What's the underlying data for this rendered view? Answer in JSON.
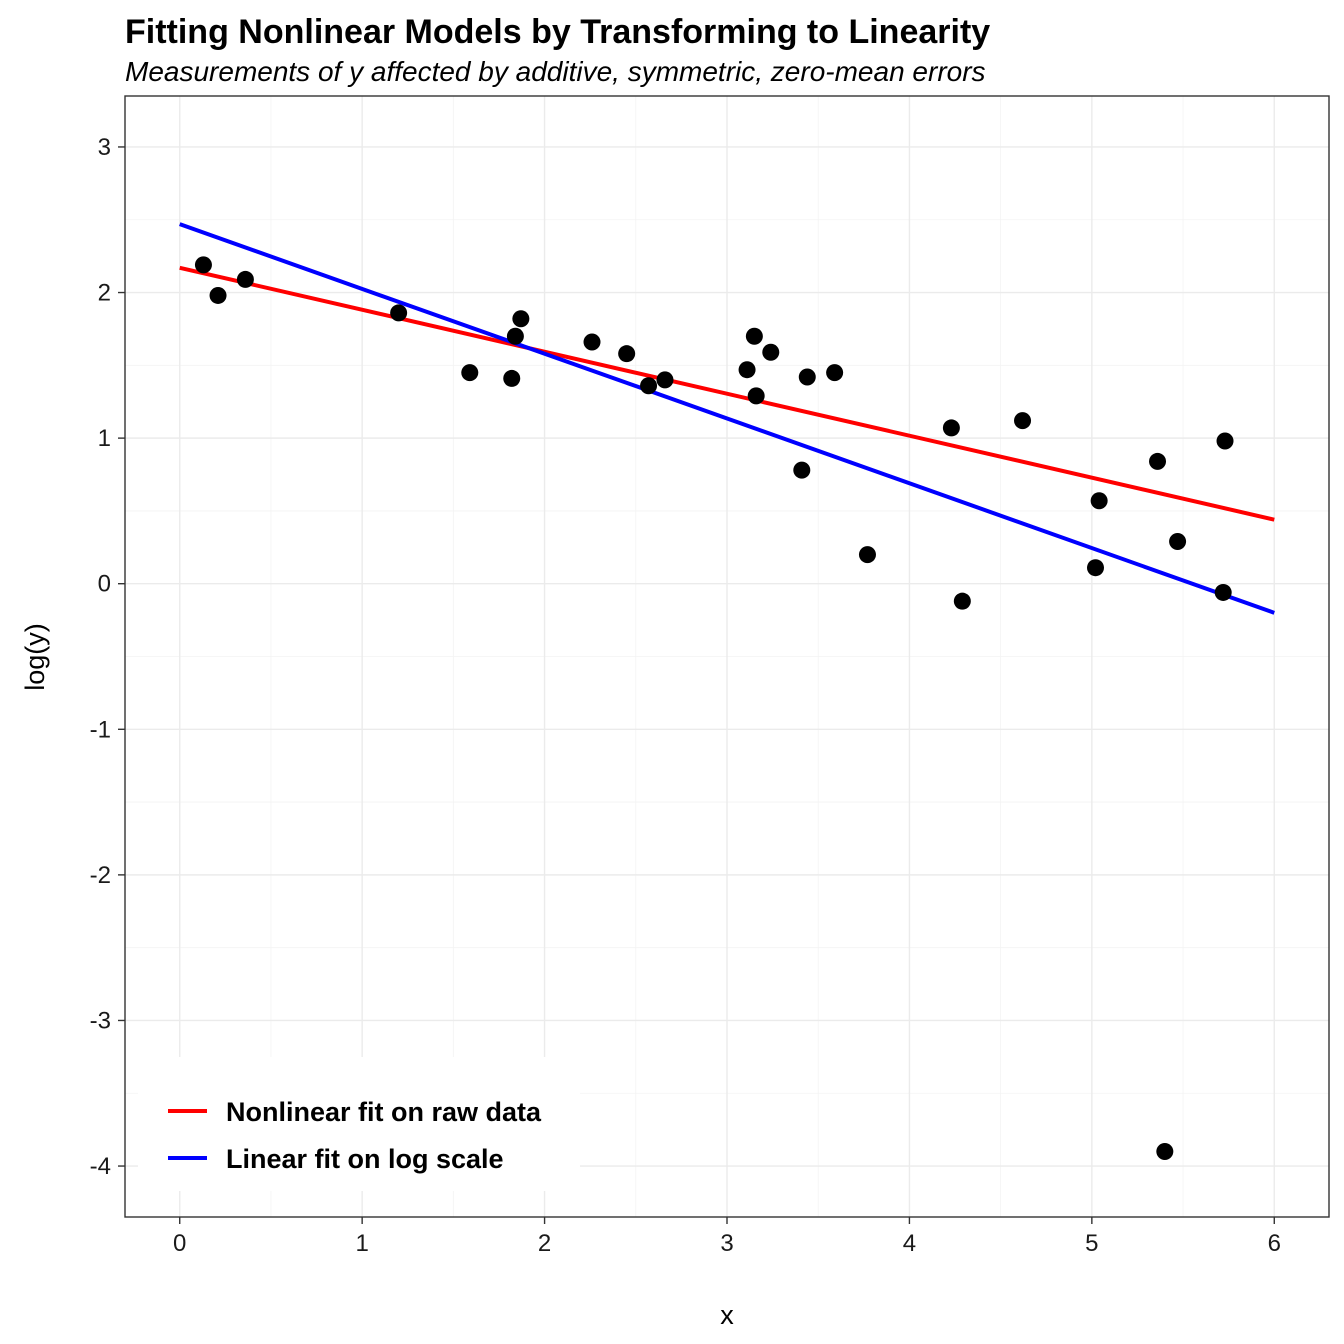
{
  "chart_data": {
    "type": "scatter",
    "title": "Fitting Nonlinear Models by Transforming to Linearity",
    "subtitle": "Measurements of y affected by additive, symmetric, zero-mean errors",
    "xlabel": "x",
    "ylabel": "log(y)",
    "xlim": [
      -0.3,
      6.3
    ],
    "ylim": [
      -4.35,
      3.35
    ],
    "x_ticks": [
      0,
      1,
      2,
      3,
      4,
      5,
      6
    ],
    "y_ticks": [
      -4,
      -3,
      -2,
      -1,
      0,
      1,
      2,
      3
    ],
    "grid": true,
    "legend_position": "bottom-left",
    "points": {
      "color": "#000000",
      "x": [
        0.13,
        0.21,
        0.36,
        1.2,
        1.59,
        1.82,
        1.84,
        1.87,
        2.26,
        2.45,
        2.57,
        2.66,
        3.11,
        3.15,
        3.16,
        3.24,
        3.41,
        3.44,
        3.59,
        3.77,
        4.23,
        4.29,
        4.62,
        5.02,
        5.04,
        5.36,
        5.4,
        5.47,
        5.72,
        5.73
      ],
      "y": [
        2.19,
        1.98,
        2.09,
        1.86,
        1.45,
        1.41,
        1.7,
        1.82,
        1.66,
        1.58,
        1.36,
        1.4,
        1.47,
        1.7,
        1.29,
        1.59,
        0.78,
        1.42,
        1.45,
        0.2,
        1.07,
        -0.12,
        1.12,
        0.11,
        0.57,
        0.84,
        -3.9,
        0.29,
        -0.06,
        0.98
      ]
    },
    "series": [
      {
        "name": "Nonlinear fit on raw data",
        "color": "#ff0000",
        "x": [
          0,
          6
        ],
        "y": [
          2.17,
          0.44
        ]
      },
      {
        "name": "Linear fit on log scale",
        "color": "#0000ff",
        "x": [
          0,
          6
        ],
        "y": [
          2.47,
          -0.2
        ]
      }
    ]
  }
}
